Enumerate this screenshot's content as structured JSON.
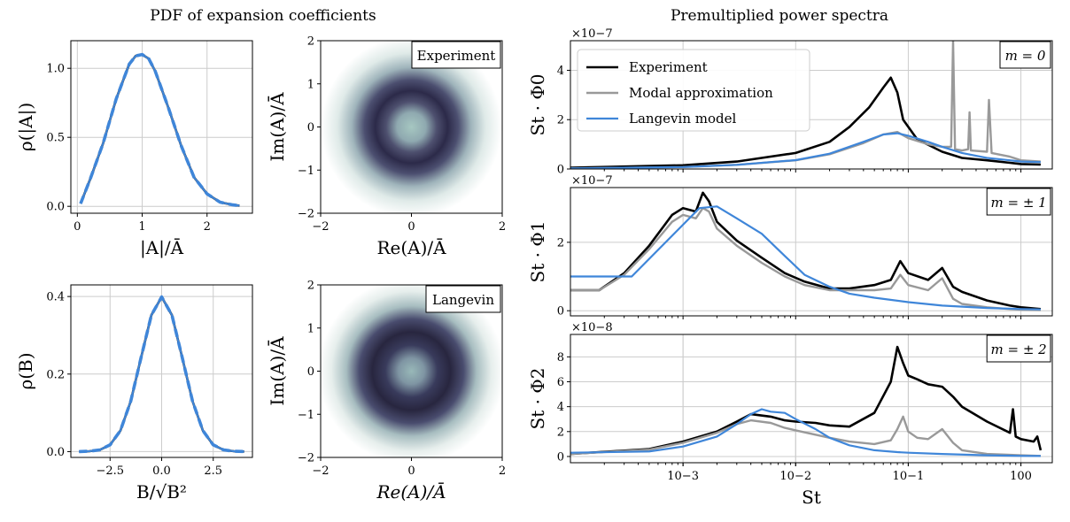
{
  "titles": {
    "left": "PDF of expansion coefficients",
    "right": "Premultiplied power spectra"
  },
  "colors": {
    "experiment": "#000000",
    "modal": "#999999",
    "langevin": "#3f86d9",
    "grid": "#cccccc"
  },
  "chart_data": [
    {
      "id": "pdf-amplitude",
      "type": "line",
      "xlabel": "|A|/Ā",
      "ylabel": "ρ(|A|)",
      "xlim": [
        -0.1,
        2.7
      ],
      "ylim": [
        -0.05,
        1.2
      ],
      "xticks": [
        0,
        1,
        2
      ],
      "yticks": [
        0.0,
        0.5,
        1.0
      ],
      "xtick_labels": [
        "0",
        "1",
        "2"
      ],
      "ytick_labels": [
        "0.0",
        "0.5",
        "1.0"
      ],
      "grid": true,
      "series": [
        {
          "style": "experiment",
          "x": [
            0.05,
            0.2,
            0.4,
            0.6,
            0.8,
            0.9,
            1.0,
            1.1,
            1.2,
            1.4,
            1.6,
            1.8,
            2.0,
            2.2,
            2.4,
            2.5
          ],
          "y": [
            0.02,
            0.2,
            0.46,
            0.78,
            1.03,
            1.09,
            1.1,
            1.07,
            0.98,
            0.72,
            0.44,
            0.21,
            0.09,
            0.03,
            0.01,
            0.005
          ]
        },
        {
          "style": "langevin",
          "x": [
            0.05,
            0.2,
            0.4,
            0.6,
            0.8,
            0.9,
            1.0,
            1.1,
            1.2,
            1.4,
            1.6,
            1.8,
            2.0,
            2.2,
            2.4,
            2.5
          ],
          "y": [
            0.02,
            0.2,
            0.46,
            0.78,
            1.03,
            1.09,
            1.1,
            1.07,
            0.98,
            0.72,
            0.44,
            0.21,
            0.09,
            0.03,
            0.01,
            0.005
          ]
        }
      ]
    },
    {
      "id": "joint-experiment",
      "type": "heatmap",
      "tag": "Experiment",
      "xlabel": "Re(A)/Ā",
      "ylabel": "Im(A)/Ā",
      "xlim": [
        -2,
        2
      ],
      "ylim": [
        -2,
        2
      ],
      "xticks": [
        -2,
        0,
        2
      ],
      "yticks": [
        -2,
        -1,
        0,
        1,
        2
      ],
      "xtick_labels": [
        "−2",
        "0",
        "2"
      ],
      "ytick_labels": [
        "−2",
        "−1",
        "0",
        "1",
        "2"
      ],
      "ring_radius": 1.0,
      "ring_width": 0.45
    },
    {
      "id": "pdf-B",
      "type": "line",
      "xlabel": "B/√B²",
      "ylabel": "ρ(B)",
      "xlim": [
        -4.4,
        4.4
      ],
      "ylim": [
        -0.015,
        0.43
      ],
      "xticks": [
        -2.5,
        0,
        2.5
      ],
      "yticks": [
        0.0,
        0.2,
        0.4
      ],
      "xtick_labels": [
        "−2.5",
        "0.0",
        "2.5"
      ],
      "ytick_labels": [
        "0.0",
        "0.2",
        "0.4"
      ],
      "grid": true,
      "series": [
        {
          "style": "experiment",
          "x": [
            -4,
            -3.5,
            -3,
            -2.5,
            -2,
            -1.5,
            -1,
            -0.5,
            0,
            0.5,
            1,
            1.5,
            2,
            2.5,
            3,
            3.5,
            4
          ],
          "y": [
            0.0001,
            0.0009,
            0.0044,
            0.0175,
            0.054,
            0.13,
            0.242,
            0.352,
            0.399,
            0.352,
            0.242,
            0.13,
            0.054,
            0.0175,
            0.0044,
            0.0009,
            0.0001
          ]
        },
        {
          "style": "langevin",
          "x": [
            -4,
            -3.5,
            -3,
            -2.5,
            -2,
            -1.5,
            -1,
            -0.5,
            0,
            0.5,
            1,
            1.5,
            2,
            2.5,
            3,
            3.5,
            4
          ],
          "y": [
            0.0001,
            0.0009,
            0.0044,
            0.0175,
            0.054,
            0.13,
            0.242,
            0.352,
            0.399,
            0.352,
            0.242,
            0.13,
            0.054,
            0.0175,
            0.0044,
            0.0009,
            0.0001
          ]
        }
      ]
    },
    {
      "id": "joint-langevin",
      "type": "heatmap",
      "tag": "Langevin",
      "xlabel": "Re(A)/Ā",
      "ylabel": "Im(A)/Ā",
      "xlim": [
        -2,
        2
      ],
      "ylim": [
        -2,
        2
      ],
      "xticks": [
        -2,
        0,
        2
      ],
      "yticks": [
        -2,
        -1,
        0,
        1,
        2
      ],
      "xtick_labels": [
        "−2",
        "0",
        "2"
      ],
      "ytick_labels": [
        "−2",
        "−1",
        "0",
        "1",
        "2"
      ],
      "ring_radius": 0.95,
      "ring_width": 0.5
    },
    {
      "id": "spectrum-m0",
      "type": "line",
      "tag": "m = 0",
      "ylabel": "St · Φ0",
      "multiplier": "×10−7",
      "xscale": "log",
      "xlim": [
        0.0001,
        1.9
      ],
      "ylim": [
        0,
        5.2
      ],
      "yticks": [
        0,
        2,
        4
      ],
      "ytick_labels": [
        "0",
        "2",
        "4"
      ],
      "grid": true,
      "series": [
        {
          "name": "Experiment",
          "style": "experiment",
          "x": [
            0.0001,
            0.001,
            0.003,
            0.01,
            0.02,
            0.03,
            0.045,
            0.06,
            0.07,
            0.08,
            0.09,
            0.12,
            0.2,
            0.3,
            0.5,
            0.8,
            1.0,
            1.5
          ],
          "y": [
            0.05,
            0.15,
            0.3,
            0.65,
            1.1,
            1.7,
            2.5,
            3.3,
            3.7,
            3.1,
            2.0,
            1.2,
            0.7,
            0.45,
            0.35,
            0.25,
            0.2,
            0.18
          ]
        },
        {
          "name": "Modal approximation",
          "style": "modal",
          "x": [
            0.0001,
            0.001,
            0.003,
            0.01,
            0.02,
            0.04,
            0.06,
            0.08,
            0.1,
            0.15,
            0.2,
            0.24,
            0.25,
            0.26,
            0.3,
            0.34,
            0.35,
            0.36,
            0.5,
            0.52,
            0.55,
            0.8,
            1.0,
            1.5
          ],
          "y": [
            0.02,
            0.08,
            0.17,
            0.35,
            0.6,
            1.05,
            1.4,
            1.5,
            1.25,
            1.0,
            0.9,
            0.9,
            5.2,
            0.8,
            0.75,
            0.8,
            2.3,
            0.75,
            0.7,
            2.8,
            0.65,
            0.5,
            0.35,
            0.3
          ]
        },
        {
          "name": "Langevin model",
          "style": "langevin",
          "x": [
            0.0001,
            0.001,
            0.003,
            0.01,
            0.02,
            0.04,
            0.06,
            0.08,
            0.1,
            0.15,
            0.2,
            0.3,
            0.5,
            0.8,
            1.0,
            1.5
          ],
          "y": [
            0.02,
            0.08,
            0.17,
            0.36,
            0.62,
            1.1,
            1.4,
            1.45,
            1.35,
            1.1,
            0.9,
            0.65,
            0.45,
            0.35,
            0.3,
            0.28
          ]
        }
      ],
      "legend_loc": "upper-left"
    },
    {
      "id": "spectrum-m1",
      "type": "line",
      "tag": "m = ± 1",
      "ylabel": "St · Φ1",
      "multiplier": "×10−7",
      "xscale": "log",
      "xlim": [
        0.0001,
        1.9
      ],
      "ylim": [
        -0.15,
        3.6
      ],
      "yticks": [
        0,
        2
      ],
      "ytick_labels": [
        "0",
        "2"
      ],
      "grid": true,
      "series": [
        {
          "name": "Experiment",
          "style": "experiment",
          "x": [
            0.0001,
            0.00018,
            0.0003,
            0.0005,
            0.0008,
            0.001,
            0.0013,
            0.0015,
            0.0017,
            0.002,
            0.003,
            0.005,
            0.008,
            0.012,
            0.02,
            0.03,
            0.05,
            0.07,
            0.085,
            0.1,
            0.15,
            0.2,
            0.25,
            0.3,
            0.5,
            0.8,
            1.0,
            1.5
          ],
          "y": [
            0.6,
            0.6,
            1.1,
            1.9,
            2.8,
            3.0,
            2.9,
            3.45,
            3.2,
            2.6,
            2.05,
            1.55,
            1.1,
            0.85,
            0.65,
            0.65,
            0.75,
            0.9,
            1.45,
            1.1,
            0.9,
            1.25,
            0.7,
            0.55,
            0.3,
            0.15,
            0.1,
            0.05
          ]
        },
        {
          "name": "Modal approximation",
          "style": "modal",
          "x": [
            0.0001,
            0.00018,
            0.0003,
            0.0005,
            0.0008,
            0.001,
            0.0013,
            0.0015,
            0.0017,
            0.002,
            0.003,
            0.005,
            0.008,
            0.012,
            0.02,
            0.03,
            0.05,
            0.07,
            0.085,
            0.1,
            0.15,
            0.2,
            0.25,
            0.3,
            0.5,
            0.8,
            1.0,
            1.5
          ],
          "y": [
            0.6,
            0.6,
            1.05,
            1.8,
            2.6,
            2.8,
            2.7,
            3.0,
            2.9,
            2.4,
            1.9,
            1.4,
            1.0,
            0.75,
            0.6,
            0.6,
            0.6,
            0.65,
            1.05,
            0.75,
            0.6,
            0.95,
            0.35,
            0.2,
            0.1,
            0.05,
            0.03,
            0.02
          ]
        },
        {
          "name": "Langevin model",
          "style": "langevin",
          "x": [
            0.0001,
            0.00035,
            0.0014,
            0.002,
            0.003,
            0.005,
            0.008,
            0.012,
            0.02,
            0.03,
            0.05,
            0.1,
            0.2,
            0.5,
            1.0,
            1.5
          ],
          "y": [
            1.0,
            1.0,
            3.0,
            3.05,
            2.7,
            2.25,
            1.6,
            1.05,
            0.7,
            0.5,
            0.38,
            0.25,
            0.15,
            0.08,
            0.05,
            0.04
          ]
        }
      ]
    },
    {
      "id": "spectrum-m2",
      "type": "line",
      "tag": "m = ± 2",
      "ylabel": "St · Φ2",
      "xlabel": "St",
      "multiplier": "×10−8",
      "xscale": "log",
      "xlim": [
        0.0001,
        1.9
      ],
      "ylim": [
        -0.5,
        9.8
      ],
      "xticks": [
        0.001,
        0.01,
        0.1,
        1
      ],
      "xtick_labels": [
        "10−3",
        "10−2",
        "10−1",
        "100"
      ],
      "yticks": [
        0,
        2,
        4,
        6,
        8
      ],
      "ytick_labels": [
        "0",
        "2",
        "4",
        "6",
        "8"
      ],
      "grid": true,
      "series": [
        {
          "name": "Experiment",
          "style": "experiment",
          "x": [
            0.0001,
            0.0005,
            0.001,
            0.002,
            0.003,
            0.004,
            0.006,
            0.008,
            0.01,
            0.015,
            0.02,
            0.03,
            0.05,
            0.07,
            0.08,
            0.09,
            0.1,
            0.12,
            0.15,
            0.2,
            0.25,
            0.3,
            0.5,
            0.8,
            0.85,
            0.9,
            1.0,
            1.3,
            1.4,
            1.5
          ],
          "y": [
            0.2,
            0.6,
            1.2,
            2.0,
            2.8,
            3.4,
            3.2,
            2.9,
            2.8,
            2.7,
            2.5,
            2.4,
            3.5,
            6.0,
            8.8,
            7.5,
            6.5,
            6.2,
            5.8,
            5.6,
            4.8,
            4.0,
            2.8,
            1.9,
            3.8,
            1.6,
            1.4,
            1.2,
            1.6,
            0.5
          ]
        },
        {
          "name": "Modal approximation",
          "style": "modal",
          "x": [
            0.0001,
            0.0005,
            0.001,
            0.002,
            0.003,
            0.004,
            0.006,
            0.008,
            0.01,
            0.02,
            0.03,
            0.05,
            0.07,
            0.08,
            0.09,
            0.1,
            0.12,
            0.15,
            0.2,
            0.25,
            0.3,
            0.5,
            1.0,
            1.5
          ],
          "y": [
            0.2,
            0.55,
            1.1,
            1.9,
            2.6,
            2.9,
            2.7,
            2.3,
            2.1,
            1.5,
            1.2,
            1.0,
            1.3,
            2.2,
            3.2,
            2.0,
            1.5,
            1.4,
            2.2,
            1.1,
            0.5,
            0.2,
            0.1,
            0.05
          ]
        },
        {
          "name": "Langevin model",
          "style": "langevin",
          "x": [
            0.0001,
            0.0005,
            0.001,
            0.002,
            0.003,
            0.004,
            0.005,
            0.006,
            0.008,
            0.01,
            0.015,
            0.02,
            0.03,
            0.05,
            0.08,
            0.1,
            0.2,
            0.5,
            1.0,
            1.5
          ],
          "y": [
            0.3,
            0.4,
            0.8,
            1.6,
            2.6,
            3.4,
            3.8,
            3.6,
            3.5,
            3.0,
            2.2,
            1.5,
            0.9,
            0.5,
            0.35,
            0.3,
            0.2,
            0.1,
            0.05,
            0.04
          ]
        }
      ]
    }
  ]
}
